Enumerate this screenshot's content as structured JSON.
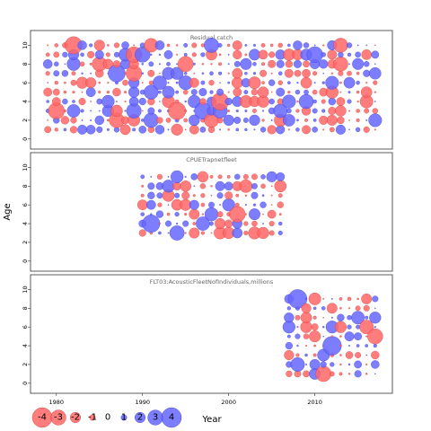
{
  "chart_data": {
    "type": "scatter",
    "subtype": "residual-bubble-plot",
    "ylabel": "Age",
    "xlabel": "Year",
    "xlim": [
      1977,
      2019
    ],
    "xticks": [
      "1980",
      "1990",
      "2000",
      "2010"
    ],
    "ylim": [
      -0.5,
      11
    ],
    "yticks": [
      "0",
      "2",
      "4",
      "6",
      "8",
      "10"
    ],
    "colors": {
      "positive": "#6666ff",
      "negative": "#ff6666",
      "edge_positive": "#3333cc",
      "edge_negative": "#cc3333"
    },
    "legend": {
      "placement": "bottom-left",
      "values": [
        "-4",
        "-3",
        "-2",
        "-1",
        "0",
        "1",
        "2",
        "3",
        "4"
      ]
    },
    "panels": [
      {
        "name": "Residual catch",
        "years": [
          1979,
          2017
        ],
        "ages": [
          1,
          10
        ],
        "seed": 17
      },
      {
        "name": "CPUETrapnetfleet",
        "years": [
          1990,
          2006
        ],
        "ages": [
          3,
          9
        ],
        "seed": 41
      },
      {
        "name": "FLT03:AcousticFleetNofIndividuals,millions",
        "years": [
          2007,
          2017
        ],
        "ages": [
          1,
          9
        ],
        "seed": 73
      }
    ]
  }
}
